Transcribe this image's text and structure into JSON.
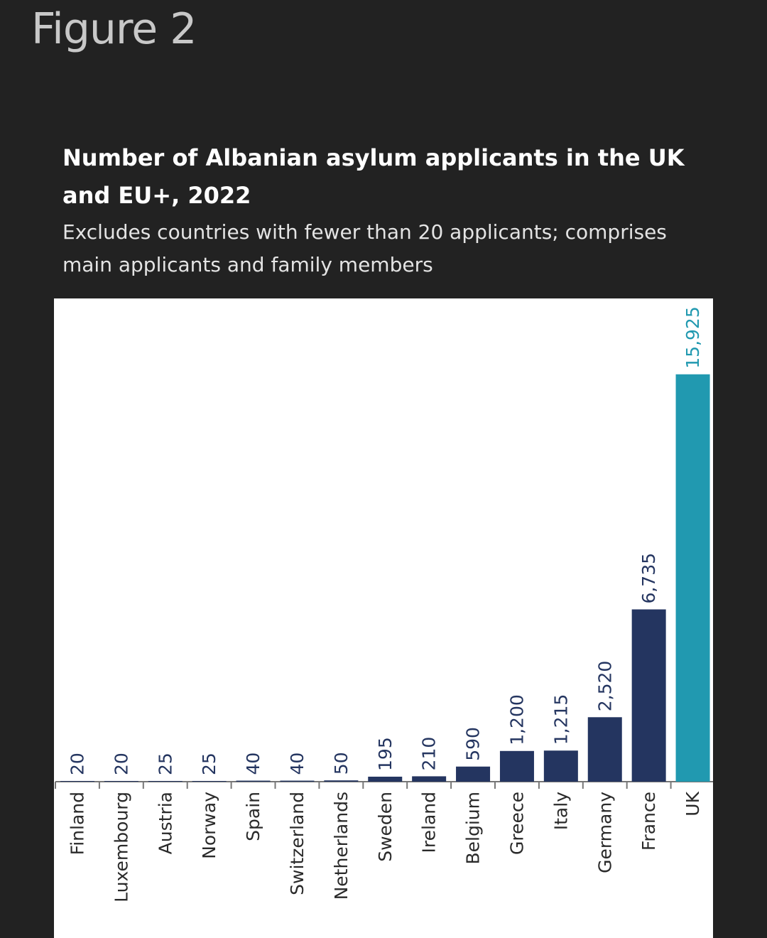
{
  "page": {
    "figure_label": "Figure 2"
  },
  "chart_data": {
    "type": "bar",
    "title": "Number of Albanian asylum applicants in the UK and EU+, 2022",
    "subtitle": "Excludes countries with fewer than 20 applicants; comprises main applicants and family members",
    "xlabel": "",
    "ylabel": "",
    "categories": [
      "Finland",
      "Luxembourg",
      "Austria",
      "Norway",
      "Spain",
      "Switzerland",
      "Netherlands",
      "Sweden",
      "Ireland",
      "Belgium",
      "Greece",
      "Italy",
      "Germany",
      "France",
      "UK"
    ],
    "values": [
      20,
      20,
      25,
      25,
      40,
      40,
      50,
      195,
      210,
      590,
      1200,
      1215,
      2520,
      6735,
      15925
    ],
    "value_labels": [
      "20",
      "20",
      "25",
      "25",
      "40",
      "40",
      "50",
      "195",
      "210",
      "590",
      "1,200",
      "1,215",
      "2,520",
      "6,735",
      "15,925"
    ],
    "ylim": [
      0,
      18890
    ],
    "grid": false,
    "legend": "none",
    "highlight_category": "UK",
    "colors": {
      "default_bar": "#243560",
      "highlight_bar": "#2199b0",
      "default_label": "#243560",
      "highlight_label": "#2199b0",
      "axis": "#777777"
    }
  }
}
